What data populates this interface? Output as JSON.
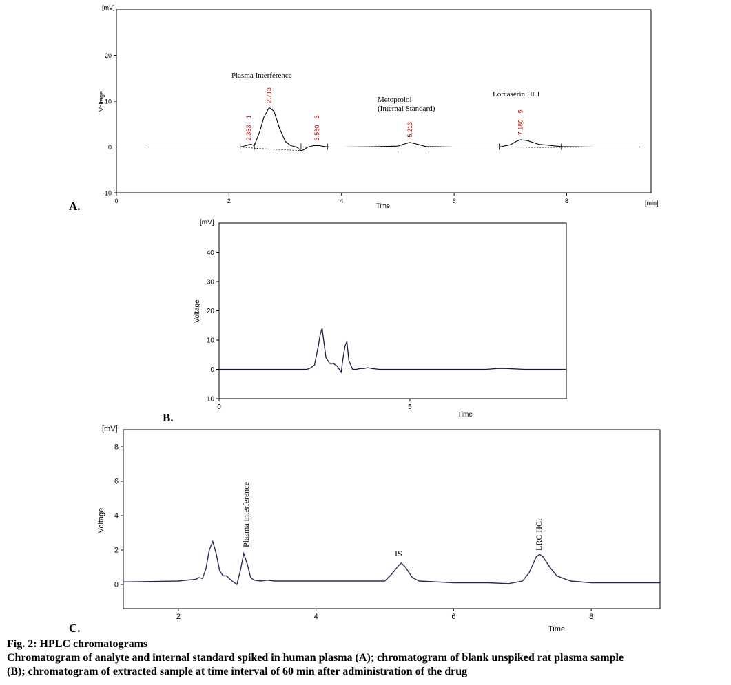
{
  "figure": {
    "caption_title": "Fig. 2: HPLC chromatograms",
    "caption_lines": [
      "Chromatogram of analyte and internal standard spiked in human plasma (A); chromatogram of blank unspiked rat plasma sample",
      "(B); chromatogram of extracted sample at time interval of 60 min after administration of the drug"
    ]
  },
  "chart_data": [
    {
      "panel_label": "A.",
      "type": "line",
      "ylabel": "Voltage",
      "xlabel": "Time",
      "y_unit": "[mV]",
      "x_unit": "[min]",
      "xlim": [
        0,
        9.5
      ],
      "ylim": [
        -10,
        30
      ],
      "x_ticks": [
        0,
        2,
        4,
        6,
        8
      ],
      "y_ticks": [
        -10,
        0,
        10,
        20
      ],
      "x": [
        0.5,
        1.5,
        2.2,
        2.3,
        2.35,
        2.39,
        2.45,
        2.55,
        2.62,
        2.713,
        2.8,
        2.9,
        3.0,
        3.1,
        3.2,
        3.28,
        3.33,
        3.4,
        3.5,
        3.6,
        3.7,
        3.8,
        4.0,
        4.5,
        5.0,
        5.1,
        5.213,
        5.35,
        5.5,
        6.0,
        6.8,
        7.0,
        7.1,
        7.18,
        7.3,
        7.5,
        7.9,
        8.5,
        9.3
      ],
      "y": [
        0,
        0,
        0,
        0.3,
        0.5,
        0.6,
        0.3,
        3.5,
        6.5,
        8.6,
        7.8,
        4,
        1.2,
        0.3,
        0,
        -0.8,
        -0.6,
        0,
        0.3,
        0.3,
        0.1,
        0,
        0,
        0.05,
        0.2,
        0.6,
        1.0,
        0.6,
        0.1,
        0,
        0,
        0.5,
        1.2,
        1.6,
        1.4,
        0.6,
        0.1,
        0,
        0
      ],
      "peaks": [
        {
          "time": "2.353",
          "id": "1",
          "x": 2.353
        },
        {
          "time": "2.713",
          "id": "",
          "x": 2.713
        },
        {
          "time": "3.560",
          "id": "3",
          "x": 3.56
        },
        {
          "time": "5.213",
          "id": "",
          "x": 5.213
        },
        {
          "time": "7.180",
          "id": "5",
          "x": 7.18
        }
      ],
      "annotations": [
        "Plasma Interference",
        "Metoprolol",
        "(Internal Standard)",
        "Lorcaserin HCl"
      ]
    },
    {
      "panel_label": "B.",
      "type": "line",
      "ylabel": "Voltage",
      "xlabel": "Time",
      "y_unit": "[mV]",
      "xlim": [
        0,
        9.1
      ],
      "ylim": [
        -10,
        50
      ],
      "x_ticks": [
        0,
        5
      ],
      "y_ticks": [
        -10,
        0,
        10,
        20,
        30,
        40
      ],
      "x": [
        0,
        2.3,
        2.4,
        2.5,
        2.6,
        2.65,
        2.7,
        2.8,
        2.9,
        3.0,
        3.1,
        3.2,
        3.25,
        3.3,
        3.35,
        3.4,
        3.5,
        3.6,
        3.7,
        3.8,
        3.9,
        4.0,
        4.2,
        5.0,
        6.0,
        7.0,
        7.3,
        7.5,
        8.0,
        9.1
      ],
      "y": [
        0,
        0,
        0.5,
        1.5,
        8,
        12,
        14,
        4,
        2,
        2,
        1,
        -1,
        4,
        8,
        9.5,
        3,
        0,
        0,
        0.3,
        0.3,
        0.6,
        0.3,
        0,
        0,
        0,
        0,
        0.3,
        0.3,
        0,
        0
      ]
    },
    {
      "panel_label": "C.",
      "type": "line",
      "ylabel": "Voltage",
      "xlabel": "Time",
      "y_unit": "[mV]",
      "xlim": [
        1.2,
        9.0
      ],
      "ylim": [
        -1.4,
        9.0
      ],
      "x_ticks": [
        2,
        4,
        6,
        8
      ],
      "y_ticks": [
        0,
        2,
        4,
        6,
        8
      ],
      "x": [
        1.2,
        2.0,
        2.25,
        2.3,
        2.35,
        2.4,
        2.45,
        2.5,
        2.55,
        2.6,
        2.65,
        2.7,
        2.75,
        2.85,
        2.9,
        2.95,
        3.0,
        3.05,
        3.1,
        3.2,
        3.3,
        3.4,
        3.6,
        4.0,
        5.0,
        5.1,
        5.2,
        5.24,
        5.3,
        5.4,
        5.5,
        6.0,
        6.5,
        6.8,
        7.0,
        7.1,
        7.2,
        7.25,
        7.3,
        7.4,
        7.5,
        7.7,
        8.0,
        9.0
      ],
      "y": [
        0.15,
        0.2,
        0.3,
        0.4,
        0.35,
        0.9,
        2.0,
        2.5,
        1.8,
        0.8,
        0.5,
        0.5,
        0.3,
        0,
        0.8,
        1.8,
        1.2,
        0.4,
        0.25,
        0.2,
        0.25,
        0.2,
        0.2,
        0.2,
        0.2,
        0.6,
        1.1,
        1.25,
        1.0,
        0.4,
        0.2,
        0.1,
        0.1,
        0.05,
        0.2,
        0.7,
        1.6,
        1.75,
        1.6,
        1.0,
        0.5,
        0.2,
        0.1,
        0.1
      ],
      "annotations": [
        "Plasma interference",
        "IS",
        "LRC HCl"
      ]
    }
  ]
}
